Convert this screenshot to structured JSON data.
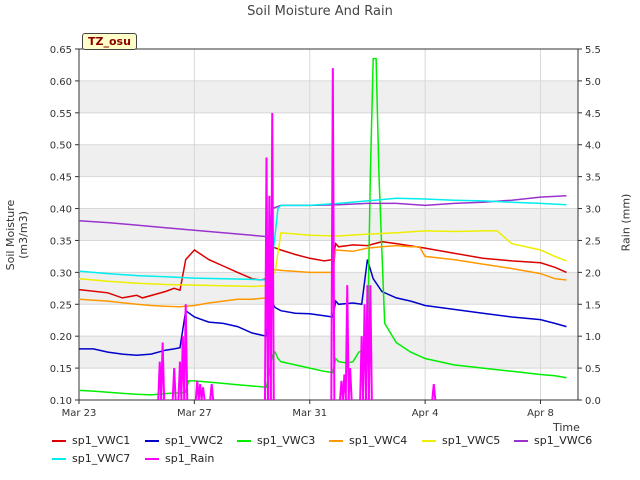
{
  "chart_data": {
    "type": "line",
    "title": "Soil Moisture And Rain",
    "badge": "TZ_osu",
    "xlabel": "Time",
    "ylabel": "Soil Moisture (m3/m3)",
    "y2label": "Rain (mm)",
    "xlim": [
      0,
      17.3
    ],
    "ylim": [
      0.1,
      0.65
    ],
    "y2lim": [
      0.0,
      5.5
    ],
    "x_tick_values": [
      0,
      4,
      8,
      12,
      16
    ],
    "x_tick_labels": [
      "Mar 23",
      "Mar 27",
      "Mar 31",
      "Apr 4",
      "Apr 8"
    ],
    "y_ticks": [
      "0.10",
      "0.15",
      "0.20",
      "0.25",
      "0.30",
      "0.35",
      "0.40",
      "0.45",
      "0.50",
      "0.55",
      "0.60",
      "0.65"
    ],
    "y2_ticks": [
      "0.0",
      "0.5",
      "1.0",
      "1.5",
      "2.0",
      "2.5",
      "3.0",
      "3.5",
      "4.0",
      "4.5",
      "5.0",
      "5.5"
    ],
    "grid": true,
    "legend_position": "bottom",
    "series": [
      {
        "name": "sp1_VWC1",
        "color": "#dd0000",
        "axis": "left",
        "x": [
          0,
          1,
          1.5,
          2,
          2.2,
          3,
          3.3,
          3.5,
          3.7,
          4,
          4.5,
          5,
          5.5,
          6,
          6.3,
          6.5,
          6.6,
          6.7,
          7,
          7.5,
          8,
          8.5,
          8.8,
          8.9,
          9,
          9.5,
          10,
          10.5,
          11,
          12,
          13,
          14,
          15,
          16,
          16.5,
          16.9
        ],
        "y": [
          0.273,
          0.268,
          0.26,
          0.264,
          0.26,
          0.27,
          0.275,
          0.272,
          0.32,
          0.335,
          0.32,
          0.31,
          0.3,
          0.29,
          0.288,
          0.29,
          0.342,
          0.34,
          0.335,
          0.328,
          0.322,
          0.318,
          0.32,
          0.345,
          0.34,
          0.343,
          0.342,
          0.348,
          0.345,
          0.338,
          0.33,
          0.322,
          0.318,
          0.315,
          0.308,
          0.3
        ]
      },
      {
        "name": "sp1_VWC2",
        "color": "#0000cc",
        "axis": "left",
        "x": [
          0,
          0.5,
          1,
          1.5,
          2,
          2.5,
          3,
          3.3,
          3.5,
          3.7,
          4,
          4.5,
          5,
          5.5,
          6,
          6.5,
          6.6,
          6.8,
          7,
          7.5,
          8,
          8.5,
          8.8,
          8.9,
          9,
          9.5,
          9.8,
          10,
          10.2,
          10.5,
          11,
          11.5,
          12,
          13,
          14,
          15,
          16,
          16.5,
          16.9
        ],
        "y": [
          0.18,
          0.18,
          0.175,
          0.172,
          0.17,
          0.172,
          0.178,
          0.18,
          0.182,
          0.24,
          0.23,
          0.222,
          0.22,
          0.215,
          0.205,
          0.2,
          0.26,
          0.245,
          0.24,
          0.236,
          0.235,
          0.232,
          0.23,
          0.255,
          0.25,
          0.252,
          0.25,
          0.32,
          0.29,
          0.27,
          0.26,
          0.255,
          0.248,
          0.242,
          0.236,
          0.23,
          0.226,
          0.22,
          0.215
        ]
      },
      {
        "name": "sp1_VWC3",
        "color": "#00ee00",
        "axis": "left",
        "x": [
          0,
          0.5,
          1,
          2,
          2.5,
          3,
          3.3,
          3.5,
          3.7,
          3.8,
          4,
          4.5,
          5,
          5.5,
          6,
          6.5,
          6.7,
          6.8,
          6.9,
          7,
          7.5,
          8,
          8.5,
          8.8,
          8.9,
          9,
          9.3,
          9.5,
          9.7,
          10,
          10.1,
          10.2,
          10.3,
          10.4,
          10.6,
          11,
          11.5,
          12,
          13,
          14,
          15,
          16,
          16.5,
          16.9
        ],
        "y": [
          0.115,
          0.114,
          0.112,
          0.109,
          0.108,
          0.11,
          0.111,
          0.111,
          0.112,
          0.13,
          0.13,
          0.128,
          0.126,
          0.124,
          0.122,
          0.12,
          0.17,
          0.175,
          0.165,
          0.16,
          0.155,
          0.15,
          0.145,
          0.143,
          0.165,
          0.16,
          0.158,
          0.16,
          0.175,
          0.18,
          0.45,
          0.635,
          0.635,
          0.45,
          0.22,
          0.19,
          0.175,
          0.165,
          0.155,
          0.15,
          0.145,
          0.14,
          0.138,
          0.135
        ]
      },
      {
        "name": "sp1_VWC4",
        "color": "#ff9900",
        "axis": "left",
        "x": [
          0,
          1,
          2,
          2.5,
          3,
          3.5,
          4,
          4.5,
          5,
          5.5,
          6,
          6.5,
          6.6,
          6.7,
          7,
          8,
          8.8,
          8.9,
          9.5,
          10,
          10.5,
          11,
          11.5,
          11.8,
          12,
          13,
          14,
          15,
          16,
          16.5,
          16.9
        ],
        "y": [
          0.258,
          0.255,
          0.25,
          0.248,
          0.247,
          0.246,
          0.248,
          0.252,
          0.255,
          0.258,
          0.258,
          0.26,
          0.285,
          0.305,
          0.303,
          0.3,
          0.3,
          0.335,
          0.333,
          0.338,
          0.34,
          0.342,
          0.34,
          0.34,
          0.325,
          0.32,
          0.313,
          0.306,
          0.298,
          0.29,
          0.288
        ]
      },
      {
        "name": "sp1_VWC5",
        "color": "#eeee00",
        "axis": "left",
        "x": [
          0,
          1,
          2,
          3,
          4,
          5,
          6,
          6.5,
          6.6,
          6.8,
          7,
          8,
          9,
          10,
          11,
          12,
          13,
          14,
          14.5,
          15,
          16,
          16.5,
          16.9
        ],
        "y": [
          0.29,
          0.286,
          0.283,
          0.281,
          0.28,
          0.279,
          0.278,
          0.279,
          0.295,
          0.3,
          0.362,
          0.358,
          0.357,
          0.36,
          0.362,
          0.365,
          0.364,
          0.365,
          0.365,
          0.345,
          0.335,
          0.325,
          0.318
        ]
      },
      {
        "name": "sp1_VWC6",
        "color": "#9933cc",
        "axis": "left",
        "x": [
          0,
          1,
          2,
          3,
          4,
          5,
          6,
          6.5,
          6.6,
          6.7,
          7,
          8,
          9,
          10,
          11,
          12,
          13,
          14,
          15,
          16,
          16.9
        ],
        "y": [
          0.381,
          0.378,
          0.374,
          0.37,
          0.366,
          0.362,
          0.358,
          0.356,
          0.355,
          0.4,
          0.405,
          0.405,
          0.406,
          0.408,
          0.408,
          0.405,
          0.408,
          0.41,
          0.413,
          0.418,
          0.42
        ]
      },
      {
        "name": "sp1_VWC7",
        "color": "#00eeee",
        "axis": "left",
        "x": [
          0,
          1,
          2,
          3,
          4,
          5,
          6,
          6.5,
          6.6,
          6.7,
          6.9,
          7,
          8,
          9,
          10,
          11,
          12,
          13,
          14,
          15,
          16,
          16.9
        ],
        "y": [
          0.302,
          0.298,
          0.295,
          0.293,
          0.291,
          0.29,
          0.289,
          0.288,
          0.287,
          0.32,
          0.4,
          0.405,
          0.405,
          0.408,
          0.412,
          0.416,
          0.415,
          0.413,
          0.412,
          0.41,
          0.408,
          0.406
        ]
      },
      {
        "name": "sp1_Rain",
        "color": "#ff00ff",
        "axis": "right",
        "bars": true,
        "x": [
          2.8,
          2.9,
          3.3,
          3.5,
          3.6,
          3.7,
          4.1,
          4.2,
          4.3,
          4.6,
          6.5,
          6.6,
          6.7,
          8.8,
          9.1,
          9.2,
          9.3,
          9.4,
          9.8,
          9.9,
          10.0,
          10.1,
          12.3
        ],
        "y": [
          0.6,
          0.9,
          0.5,
          0.6,
          1.0,
          1.5,
          0.3,
          0.25,
          0.2,
          0.25,
          3.8,
          3.2,
          4.5,
          5.2,
          0.3,
          0.4,
          1.8,
          0.5,
          1.0,
          1.5,
          1.8,
          1.8,
          0.25
        ]
      }
    ]
  }
}
